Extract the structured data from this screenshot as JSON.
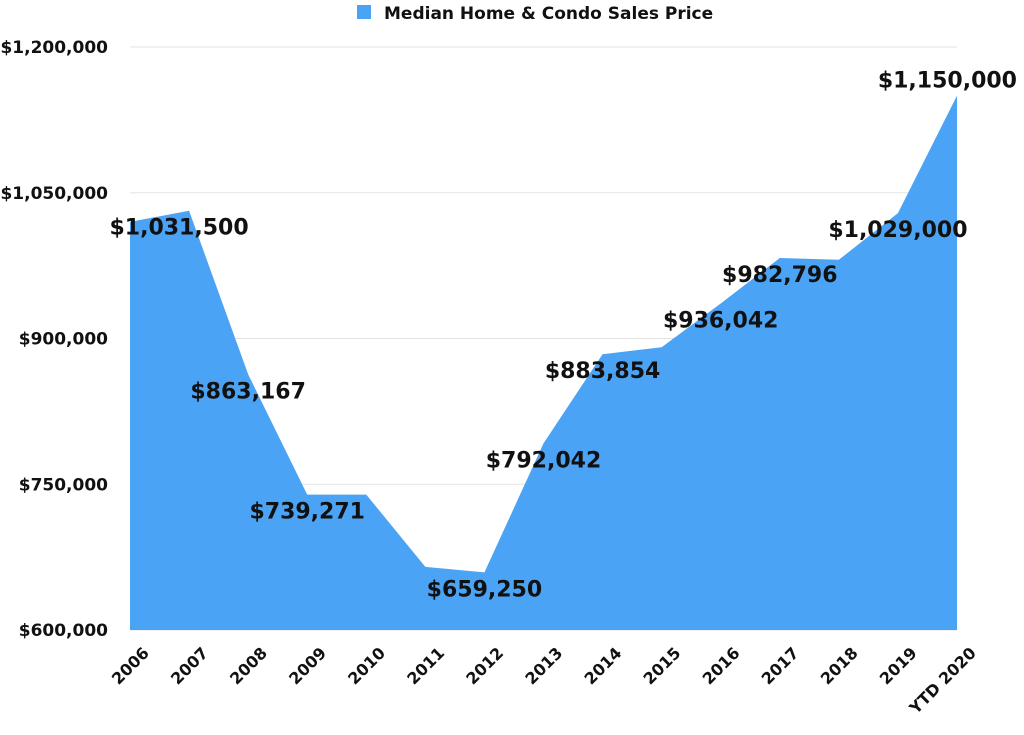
{
  "chart_data": {
    "type": "area",
    "title": "",
    "xlabel": "",
    "ylabel": "",
    "legend": {
      "position": "top",
      "entries": [
        "Median Home & Condo Sales Price"
      ]
    },
    "ylim": [
      600000,
      1200000
    ],
    "yticks": [
      600000,
      750000,
      900000,
      1050000,
      1200000
    ],
    "ytick_labels": [
      "$600,000",
      "$750,000",
      "$900,000",
      "$1,050,000",
      "$1,200,000"
    ],
    "grid": true,
    "color": "#4ba3f5",
    "categories": [
      "2006",
      "2007",
      "2008",
      "2009",
      "2010",
      "2011",
      "2012",
      "2013",
      "2014",
      "2015",
      "2016",
      "2017",
      "2018",
      "2019",
      "YTD 2020"
    ],
    "series": [
      {
        "name": "Median Home & Condo Sales Price",
        "values": [
          1020000,
          1031500,
          863167,
          739271,
          739271,
          665000,
          659250,
          792042,
          883854,
          891000,
          936042,
          982796,
          981000,
          1029000,
          1150000
        ],
        "data_labels": [
          "",
          "$1,031,500",
          "$863,167",
          "$739,271",
          "",
          "",
          "$659,250",
          "$792,042",
          "$883,854",
          "",
          "$936,042",
          "$982,796",
          "",
          "$1,029,000",
          "$1,150,000"
        ]
      }
    ]
  }
}
